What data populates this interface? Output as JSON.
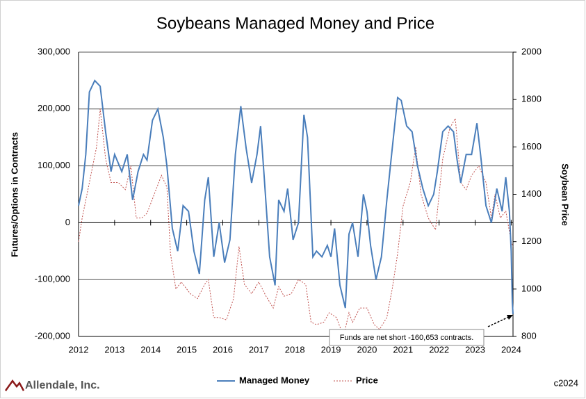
{
  "chart_data": {
    "type": "line",
    "title": "Soybeans Managed Money and Price",
    "y_label": "Futures/Options in Contracts",
    "y2_label": "Soybean Price",
    "xlim": [
      2012,
      2024.05
    ],
    "xticks": [
      2012,
      2013,
      2014,
      2015,
      2016,
      2017,
      2018,
      2019,
      2020,
      2021,
      2022,
      2023,
      2024
    ],
    "ylim": [
      -200000,
      300000
    ],
    "yticks": [
      {
        "value": -200000,
        "label": "-200,000"
      },
      {
        "value": -100000,
        "label": "-100,000"
      },
      0,
      {
        "value": 100000,
        "label": "100,000"
      },
      {
        "value": 200000,
        "label": "200,000"
      },
      {
        "value": 300000,
        "label": "300,000"
      }
    ],
    "y2lim": [
      800,
      2000
    ],
    "y2ticks": [
      800,
      1000,
      1200,
      1400,
      1600,
      1800,
      2000
    ],
    "grid": true,
    "legend": "bottom",
    "annotation": "Funds are net short -160,653 contracts.",
    "logo": "Allendale, Inc.",
    "copyright": "c2024",
    "series": [
      {
        "name": "Managed Money",
        "color": "#4a7ebb",
        "axis": "y",
        "x": [
          2012.0,
          2012.1,
          2012.2,
          2012.3,
          2012.45,
          2012.6,
          2012.75,
          2012.9,
          2013.0,
          2013.2,
          2013.35,
          2013.5,
          2013.65,
          2013.8,
          2013.9,
          2014.05,
          2014.2,
          2014.35,
          2014.45,
          2014.6,
          2014.75,
          2014.9,
          2015.05,
          2015.2,
          2015.35,
          2015.5,
          2015.6,
          2015.75,
          2015.9,
          2016.05,
          2016.2,
          2016.35,
          2016.5,
          2016.65,
          2016.8,
          2016.95,
          2017.05,
          2017.15,
          2017.3,
          2017.45,
          2017.55,
          2017.7,
          2017.8,
          2017.95,
          2018.1,
          2018.25,
          2018.35,
          2018.5,
          2018.6,
          2018.75,
          2018.9,
          2019.0,
          2019.1,
          2019.25,
          2019.4,
          2019.5,
          2019.6,
          2019.75,
          2019.9,
          2020.0,
          2020.1,
          2020.25,
          2020.4,
          2020.55,
          2020.7,
          2020.85,
          2020.95,
          2021.1,
          2021.25,
          2021.4,
          2021.55,
          2021.7,
          2021.85,
          2021.95,
          2022.1,
          2022.25,
          2022.4,
          2022.5,
          2022.6,
          2022.75,
          2022.9,
          2023.05,
          2023.15,
          2023.3,
          2023.45,
          2023.6,
          2023.75,
          2023.85,
          2023.95,
          2024.0,
          2024.03,
          2024.05
        ],
        "values": [
          30000,
          60000,
          120000,
          230000,
          250000,
          240000,
          160000,
          90000,
          120000,
          90000,
          120000,
          40000,
          90000,
          120000,
          110000,
          180000,
          200000,
          150000,
          100000,
          -10000,
          -50000,
          30000,
          20000,
          -50000,
          -90000,
          40000,
          80000,
          -60000,
          0,
          -70000,
          -30000,
          120000,
          205000,
          130000,
          70000,
          120000,
          170000,
          80000,
          -60000,
          -110000,
          40000,
          20000,
          60000,
          -30000,
          0,
          190000,
          150000,
          -60000,
          -50000,
          -60000,
          -40000,
          -60000,
          -10000,
          -110000,
          -150000,
          -20000,
          0,
          -60000,
          50000,
          20000,
          -40000,
          -100000,
          -60000,
          40000,
          130000,
          220000,
          215000,
          170000,
          160000,
          100000,
          60000,
          30000,
          50000,
          90000,
          160000,
          170000,
          160000,
          110000,
          70000,
          120000,
          120000,
          175000,
          120000,
          30000,
          0,
          60000,
          20000,
          80000,
          20000,
          -50000,
          -140000,
          -160653
        ]
      },
      {
        "name": "Price",
        "color": "#c0504d",
        "axis": "y2",
        "x": [
          2012.0,
          2012.1,
          2012.3,
          2012.5,
          2012.6,
          2012.75,
          2012.9,
          2013.1,
          2013.3,
          2013.45,
          2013.6,
          2013.75,
          2013.9,
          2014.1,
          2014.3,
          2014.45,
          2014.55,
          2014.7,
          2014.85,
          2015.1,
          2015.3,
          2015.5,
          2015.6,
          2015.75,
          2015.9,
          2016.1,
          2016.3,
          2016.45,
          2016.6,
          2016.8,
          2017.0,
          2017.2,
          2017.4,
          2017.55,
          2017.7,
          2017.9,
          2018.1,
          2018.3,
          2018.45,
          2018.6,
          2018.8,
          2018.95,
          2019.15,
          2019.35,
          2019.5,
          2019.6,
          2019.8,
          2020.0,
          2020.2,
          2020.35,
          2020.55,
          2020.7,
          2020.85,
          2021.0,
          2021.2,
          2021.35,
          2021.5,
          2021.7,
          2021.9,
          2022.1,
          2022.3,
          2022.45,
          2022.6,
          2022.75,
          2022.9,
          2023.1,
          2023.3,
          2023.45,
          2023.55,
          2023.7,
          2023.85,
          2024.0,
          2024.05
        ],
        "values": [
          1200,
          1300,
          1450,
          1600,
          1760,
          1550,
          1450,
          1450,
          1420,
          1520,
          1300,
          1300,
          1320,
          1400,
          1480,
          1430,
          1150,
          1000,
          1030,
          980,
          960,
          1020,
          1040,
          880,
          880,
          870,
          960,
          1180,
          1020,
          980,
          1030,
          970,
          920,
          1010,
          970,
          980,
          1040,
          1020,
          860,
          850,
          860,
          900,
          880,
          800,
          900,
          860,
          920,
          920,
          850,
          830,
          880,
          1000,
          1150,
          1350,
          1450,
          1600,
          1400,
          1300,
          1250,
          1550,
          1680,
          1720,
          1450,
          1420,
          1480,
          1520,
          1450,
          1300,
          1400,
          1300,
          1330,
          1200,
          1180
        ]
      }
    ]
  }
}
